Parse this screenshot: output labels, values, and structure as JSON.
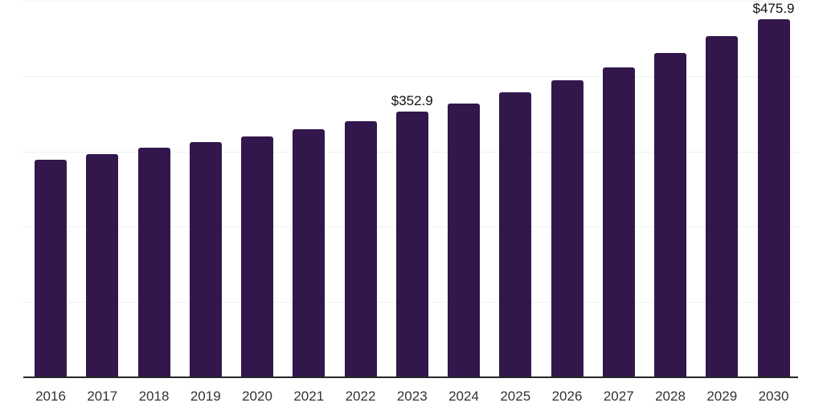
{
  "chart_data": {
    "type": "bar",
    "title": "",
    "xlabel": "",
    "ylabel": "",
    "categories": [
      "2016",
      "2017",
      "2018",
      "2019",
      "2020",
      "2021",
      "2022",
      "2023",
      "2024",
      "2025",
      "2026",
      "2027",
      "2028",
      "2029",
      "2030"
    ],
    "values": [
      288.4,
      296.7,
      304.8,
      312.8,
      320.3,
      329.8,
      340.4,
      352.9,
      363.8,
      378.7,
      394.7,
      411.7,
      430.9,
      453.2,
      475.9
    ],
    "data_labels": {
      "2023": "$352.9",
      "2030": "$475.9"
    },
    "ylim": [
      0,
      500
    ],
    "gridline_values": [
      100,
      200,
      300,
      400,
      500
    ],
    "grid": true,
    "legend": "none",
    "colors": {
      "bar": "#32174d",
      "axis_line": "#262626",
      "gridline": "#f0f0f0",
      "tick_label": "#333333",
      "data_label": "#111111",
      "background": "#ffffff"
    }
  }
}
